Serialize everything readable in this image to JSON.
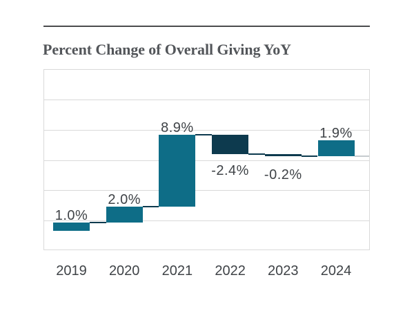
{
  "header": {
    "title": "Percent Change of Overall Giving YoY"
  },
  "colors": {
    "title_text": "#53565a",
    "title_rule": "#4a4b4d",
    "label_text": "#3f4347",
    "grid": "#d9d9d9",
    "plot_border": "#d9d9d9",
    "positive_bar": "#0e6d87",
    "negative_bar": "#0d3a4e",
    "connector": "#0d3a4e",
    "trailing_connector": "#c6cbce",
    "background": "#ffffff"
  },
  "chart_data": {
    "type": "bar",
    "subtype": "waterfall",
    "title": "Percent Change of Overall Giving YoY",
    "categories": [
      "2019",
      "2020",
      "2021",
      "2022",
      "2023",
      "2024"
    ],
    "values": [
      1.0,
      2.0,
      8.9,
      -2.4,
      -0.2,
      1.9
    ],
    "cumulative": [
      1.0,
      3.0,
      11.9,
      9.5,
      9.3,
      11.2
    ],
    "point_labels": [
      "1.0%",
      "2.0%",
      "8.9%",
      "-2.4%",
      "-0.2%",
      "1.9%"
    ],
    "xlabel": "",
    "ylabel": "",
    "ylim": [
      -2.5,
      20
    ],
    "gridline_step": 3.75,
    "grid": true,
    "legend": "none",
    "y_axis_tick_labels_visible": false,
    "bar_colors": {
      "positive": "#0e6d87",
      "negative": "#0d3a4e"
    }
  }
}
